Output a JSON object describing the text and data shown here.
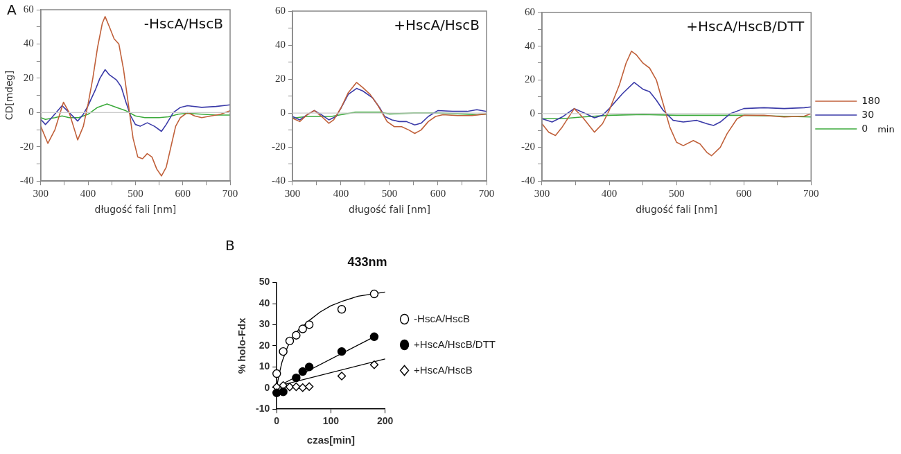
{
  "chart_data": [
    {
      "type": "line",
      "title": "-HscA/HscB",
      "xlabel": "długość fali [nm]",
      "ylabel": "CD[mdeg]",
      "annotations": [
        "A"
      ],
      "xlim": [
        300,
        700
      ],
      "ylim": [
        -40,
        60
      ],
      "xticks": [
        300,
        {
          "value": 350,
          "label": null
        },
        400,
        {
          "value": 450,
          "label": null
        },
        500,
        {
          "value": 550,
          "label": null
        },
        600,
        {
          "value": 650,
          "label": null
        },
        700
      ],
      "yticks": [
        -40,
        {
          "value": -30,
          "label": null
        },
        -20,
        {
          "value": -10,
          "label": null
        },
        0,
        {
          "value": 10,
          "label": null
        },
        20,
        {
          "value": 30,
          "label": null
        },
        40,
        {
          "value": 50,
          "label": null
        },
        60
      ],
      "ref_lines": [
        {
          "axis": "y",
          "value": 0,
          "color": "#cccccc"
        }
      ],
      "series": [
        {
          "color": "#c0603a",
          "x": [
            300,
            315,
            330,
            348,
            360,
            378,
            390,
            400,
            410,
            420,
            430,
            436,
            445,
            455,
            465,
            475,
            485,
            495,
            505,
            515,
            525,
            535,
            545,
            555,
            565,
            575,
            585,
            595,
            610,
            625,
            640,
            660,
            680,
            700
          ],
          "values": [
            -8,
            -18,
            -10,
            6,
            0,
            -16,
            -8,
            5,
            20,
            38,
            52,
            56,
            50,
            43,
            40,
            25,
            5,
            -15,
            -26,
            -27,
            -24,
            -26,
            -33,
            -37,
            -32,
            -20,
            -8,
            -3,
            0,
            -2,
            -3,
            -2,
            -1,
            1
          ]
        },
        {
          "color": "#3a3aa8",
          "x": [
            300,
            310,
            320,
            345,
            360,
            378,
            390,
            400,
            415,
            425,
            436,
            445,
            460,
            470,
            480,
            490,
            500,
            510,
            525,
            540,
            555,
            565,
            580,
            595,
            610,
            640,
            670,
            700
          ],
          "values": [
            -4,
            -7,
            -4,
            4,
            0,
            -5,
            -1,
            4,
            13,
            20,
            25,
            22,
            19,
            15,
            6,
            -2,
            -7,
            -8,
            -6,
            -8,
            -11,
            -7,
            0,
            3,
            4,
            3,
            3.5,
            4.5
          ]
        },
        {
          "color": "#3caa3c",
          "x": [
            300,
            310,
            330,
            345,
            360,
            380,
            400,
            420,
            440,
            460,
            480,
            500,
            520,
            550,
            570,
            590,
            610,
            640,
            670,
            700
          ],
          "values": [
            -3,
            -4,
            -3,
            -2,
            -3,
            -3,
            -1,
            3,
            5,
            3,
            1,
            -2,
            -3,
            -3,
            -2.5,
            -1,
            -0.5,
            -1,
            -1.5,
            -1.5
          ]
        }
      ]
    },
    {
      "type": "line",
      "title": "+HscA/HscB",
      "xlabel": "długość fali [nm]",
      "xlim": [
        300,
        700
      ],
      "ylim": [
        -40,
        60
      ],
      "xticks": [
        300,
        {
          "value": 350,
          "label": null
        },
        400,
        {
          "value": 450,
          "label": null
        },
        500,
        {
          "value": 550,
          "label": null
        },
        600,
        {
          "value": 650,
          "label": null
        },
        700
      ],
      "yticks": [
        -40,
        {
          "value": -30,
          "label": null
        },
        -20,
        {
          "value": -10,
          "label": null
        },
        0,
        {
          "value": 10,
          "label": null
        },
        20,
        {
          "value": 30,
          "label": null
        },
        40,
        {
          "value": 50,
          "label": null
        },
        60
      ],
      "ref_lines": [
        {
          "axis": "y",
          "value": 0,
          "color": "#cccccc"
        }
      ],
      "series": [
        {
          "color": "#c0603a",
          "x": [
            300,
            315,
            330,
            345,
            360,
            375,
            385,
            400,
            415,
            432,
            445,
            460,
            475,
            485,
            495,
            510,
            525,
            540,
            552,
            565,
            580,
            595,
            610,
            640,
            670,
            700
          ],
          "values": [
            -3,
            -5,
            -1,
            1.5,
            -2,
            -6,
            -4,
            3,
            12,
            18,
            15,
            11,
            5,
            0,
            -5,
            -8,
            -8,
            -10,
            -12,
            -10,
            -5,
            -2,
            -1,
            -1.5,
            -1.5,
            -0.5
          ]
        },
        {
          "color": "#3a3aa8",
          "x": [
            300,
            315,
            330,
            345,
            360,
            375,
            390,
            400,
            415,
            432,
            445,
            465,
            480,
            490,
            505,
            520,
            535,
            552,
            565,
            580,
            600,
            630,
            660,
            680,
            700
          ],
          "values": [
            -2,
            -4,
            -1,
            1.5,
            -1,
            -4,
            -2,
            3,
            11,
            14.5,
            13,
            9,
            3,
            -2,
            -4,
            -5,
            -5,
            -7,
            -6,
            -2,
            1.5,
            1,
            1,
            2,
            1
          ]
        },
        {
          "color": "#3caa3c",
          "x": [
            300,
            330,
            360,
            380,
            400,
            430,
            460,
            480,
            500,
            550,
            600,
            650,
            680,
            700
          ],
          "values": [
            -3,
            -2,
            -2,
            -2,
            -1,
            0.5,
            0.5,
            0.5,
            -0.5,
            0,
            0,
            -0.5,
            -1,
            -0.5
          ]
        }
      ]
    },
    {
      "type": "line",
      "title": "+HscA/HscB/DTT",
      "xlabel": "długość fali [nm]",
      "annotations": [
        "min"
      ],
      "legend": "right",
      "xlim": [
        300,
        700
      ],
      "ylim": [
        -40,
        60
      ],
      "xticks": [
        300,
        {
          "value": 350,
          "label": null
        },
        400,
        {
          "value": 450,
          "label": null
        },
        500,
        {
          "value": 550,
          "label": null
        },
        600,
        {
          "value": 650,
          "label": null
        },
        700
      ],
      "yticks": [
        -40,
        {
          "value": -30,
          "label": null
        },
        -20,
        {
          "value": -10,
          "label": null
        },
        0,
        {
          "value": 10,
          "label": null
        },
        20,
        {
          "value": 30,
          "label": null
        },
        40,
        {
          "value": 50,
          "label": null
        },
        60
      ],
      "ref_lines": [
        {
          "axis": "y",
          "value": 0,
          "color": "#cccccc"
        }
      ],
      "series": [
        {
          "name": "180",
          "color": "#c0603a",
          "x": [
            300,
            310,
            320,
            330,
            348,
            360,
            378,
            390,
            400,
            415,
            425,
            433,
            440,
            450,
            460,
            470,
            480,
            490,
            500,
            510,
            525,
            535,
            545,
            552,
            565,
            575,
            590,
            600,
            630,
            660,
            690,
            700
          ],
          "values": [
            -6,
            -11,
            -13,
            -8,
            3,
            -2,
            -11,
            -6,
            2,
            17,
            30,
            37,
            35,
            30,
            27,
            20,
            6,
            -8,
            -17,
            -19,
            -16,
            -18,
            -23,
            -25,
            -20,
            -12,
            -3,
            -1,
            -1,
            -2,
            -1.5,
            0
          ]
        },
        {
          "name": "30",
          "color": "#3a3aa8",
          "x": [
            300,
            315,
            330,
            348,
            365,
            378,
            390,
            400,
            420,
            437,
            450,
            460,
            470,
            480,
            495,
            510,
            530,
            545,
            555,
            565,
            580,
            600,
            630,
            660,
            690,
            700
          ],
          "values": [
            -3,
            -5,
            -2,
            3,
            0,
            -2.5,
            -1,
            3,
            12,
            18.5,
            14.5,
            13,
            8,
            2,
            -4,
            -5,
            -4,
            -6,
            -7,
            -5,
            0,
            3,
            3.5,
            3,
            3.5,
            4
          ]
        },
        {
          "name": "0",
          "color": "#3caa3c",
          "x": [
            300,
            330,
            360,
            400,
            450,
            500,
            550,
            600,
            650,
            700
          ],
          "values": [
            -3,
            -3,
            -2,
            -1,
            -0.5,
            -1,
            -1,
            -1,
            -1.5,
            -2
          ]
        }
      ]
    },
    {
      "type": "scatter",
      "title": "433nm",
      "xlabel": "czas[min]",
      "ylabel": "% holo-Fdx",
      "annotations": [
        "B"
      ],
      "legend": "right",
      "xlim": [
        0,
        200
      ],
      "xticks": [
        0,
        100,
        200
      ],
      "ylim": [
        -10,
        50
      ],
      "yticks": [
        -10,
        0,
        10,
        20,
        30,
        40,
        50
      ],
      "series": [
        {
          "name": "-HscA/HscB",
          "color": "#ffffff",
          "marker": "circle",
          "x": [
            0,
            12,
            24,
            36,
            48,
            60,
            120,
            180
          ],
          "values": [
            6.8,
            17.3,
            22.3,
            25,
            28,
            30,
            37.3,
            44.6
          ]
        },
        {
          "name": "+HscA/HscB/DTT",
          "color": "#000000",
          "marker": "circle",
          "x": [
            0,
            12,
            36,
            48,
            60,
            120,
            180
          ],
          "values": [
            -2.3,
            -1.8,
            4.8,
            7.8,
            10,
            17.3,
            24.3
          ]
        },
        {
          "name": "+HscA/HscB",
          "color": "#ffffff",
          "marker": "diamond",
          "x": [
            0,
            12,
            24,
            36,
            48,
            60,
            120,
            180
          ],
          "values": [
            0.5,
            1.2,
            0.5,
            0.6,
            0.2,
            0.7,
            5.7,
            11
          ]
        },
        {
          "type": "line",
          "color": "#000000",
          "marker": "none",
          "x": [
            0,
            5,
            10,
            20,
            30,
            40,
            60,
            80,
            100,
            120,
            150,
            200
          ],
          "values": [
            0.5,
            7,
            12.5,
            19.5,
            24,
            27.5,
            32,
            36,
            39,
            41,
            43.5,
            45.5
          ]
        },
        {
          "type": "line",
          "color": "#000000",
          "marker": "none",
          "x": [
            0,
            180
          ],
          "values": [
            0.5,
            24.3
          ]
        },
        {
          "type": "line",
          "color": "#000000",
          "marker": "none",
          "x": [
            0,
            200
          ],
          "values": [
            0.8,
            13.8
          ]
        }
      ]
    }
  ]
}
